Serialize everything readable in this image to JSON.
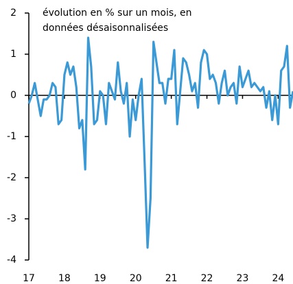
{
  "chart_data": {
    "type": "line",
    "annotation": [
      "évolution en % sur un mois, en",
      "données désaisonnalisées"
    ],
    "categories": [
      "17",
      null,
      null,
      null,
      null,
      null,
      null,
      null,
      null,
      null,
      null,
      null,
      "18",
      null,
      null,
      null,
      null,
      null,
      null,
      null,
      null,
      null,
      null,
      null,
      "19",
      null,
      null,
      null,
      null,
      null,
      null,
      null,
      null,
      null,
      null,
      null,
      "20",
      null,
      null,
      null,
      null,
      null,
      null,
      null,
      null,
      null,
      null,
      null,
      "21",
      null,
      null,
      null,
      null,
      null,
      null,
      null,
      null,
      null,
      null,
      null,
      "22",
      null,
      null,
      null,
      null,
      null,
      null,
      null,
      null,
      null,
      null,
      null,
      "23",
      null,
      null,
      null,
      null,
      null,
      null,
      null,
      null,
      null,
      null,
      null,
      "24",
      null,
      null,
      null,
      null,
      null
    ],
    "series": [
      {
        "color": "#3b9ad6",
        "values": [
          -0.2,
          0.0,
          0.3,
          -0.1,
          -0.5,
          -0.1,
          -0.1,
          0.0,
          0.3,
          0.2,
          -0.7,
          -0.6,
          0.5,
          0.8,
          0.5,
          0.7,
          0.2,
          -0.8,
          -0.6,
          -1.8,
          1.4,
          0.7,
          -0.7,
          -0.6,
          0.1,
          0.0,
          -0.7,
          0.3,
          0.1,
          -0.1,
          0.8,
          0.1,
          -0.2,
          0.3,
          -1.0,
          -0.1,
          -0.6,
          0.0,
          0.4,
          -1.6,
          -3.7,
          -2.5,
          1.3,
          0.8,
          0.3,
          0.3,
          -0.2,
          0.4,
          0.4,
          1.1,
          -0.7,
          0.1,
          0.9,
          0.8,
          0.5,
          0.1,
          0.3,
          -0.3,
          0.8,
          1.1,
          1.0,
          0.4,
          0.5,
          0.3,
          -0.2,
          0.3,
          0.6,
          0.0,
          0.2,
          0.3,
          -0.2,
          0.7,
          0.2,
          0.4,
          0.6,
          0.2,
          0.3,
          0.2,
          0.1,
          0.2,
          -0.3,
          0.1,
          -0.6,
          0.0,
          -0.7,
          0.6,
          0.7,
          1.2,
          -0.3,
          0.1
        ]
      }
    ],
    "ylim": [
      -4,
      2
    ],
    "yticks": [
      2,
      1,
      0,
      -1,
      -2,
      -3,
      -4
    ]
  }
}
